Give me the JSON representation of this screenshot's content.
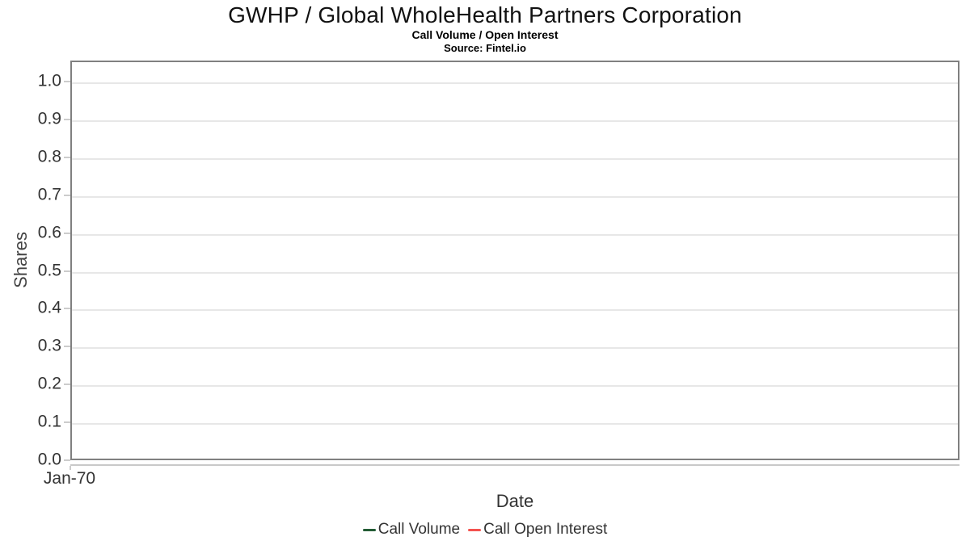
{
  "chart_data": {
    "type": "line",
    "title": "GWHP / Global WholeHealth Partners Corporation",
    "subtitle": "Call Volume / Open Interest",
    "source": "Source: Fintel.io",
    "xlabel": "Date",
    "ylabel": "Shares",
    "x_ticks": [
      "Jan-70"
    ],
    "y_ticks": [
      "1.0",
      "0.9",
      "0.8",
      "0.7",
      "0.6",
      "0.5",
      "0.4",
      "0.3",
      "0.2",
      "0.1",
      "0.0"
    ],
    "ylim": [
      0,
      1.055
    ],
    "grid": "horizontal-only",
    "legend_position": "bottom-center",
    "series": [
      {
        "name": "Call Volume",
        "color": "#235c35",
        "x": [],
        "values": []
      },
      {
        "name": "Call Open Interest",
        "color": "#f4534f",
        "x": [],
        "values": []
      }
    ],
    "note_empty": "no data points plotted"
  },
  "colors": {
    "plot_border": "#808080",
    "gridline": "#e7e7e7",
    "tick": "#cccccc",
    "axis_line": "#c9c9c9",
    "title_text": "#111111",
    "axis_text": "#333333"
  }
}
